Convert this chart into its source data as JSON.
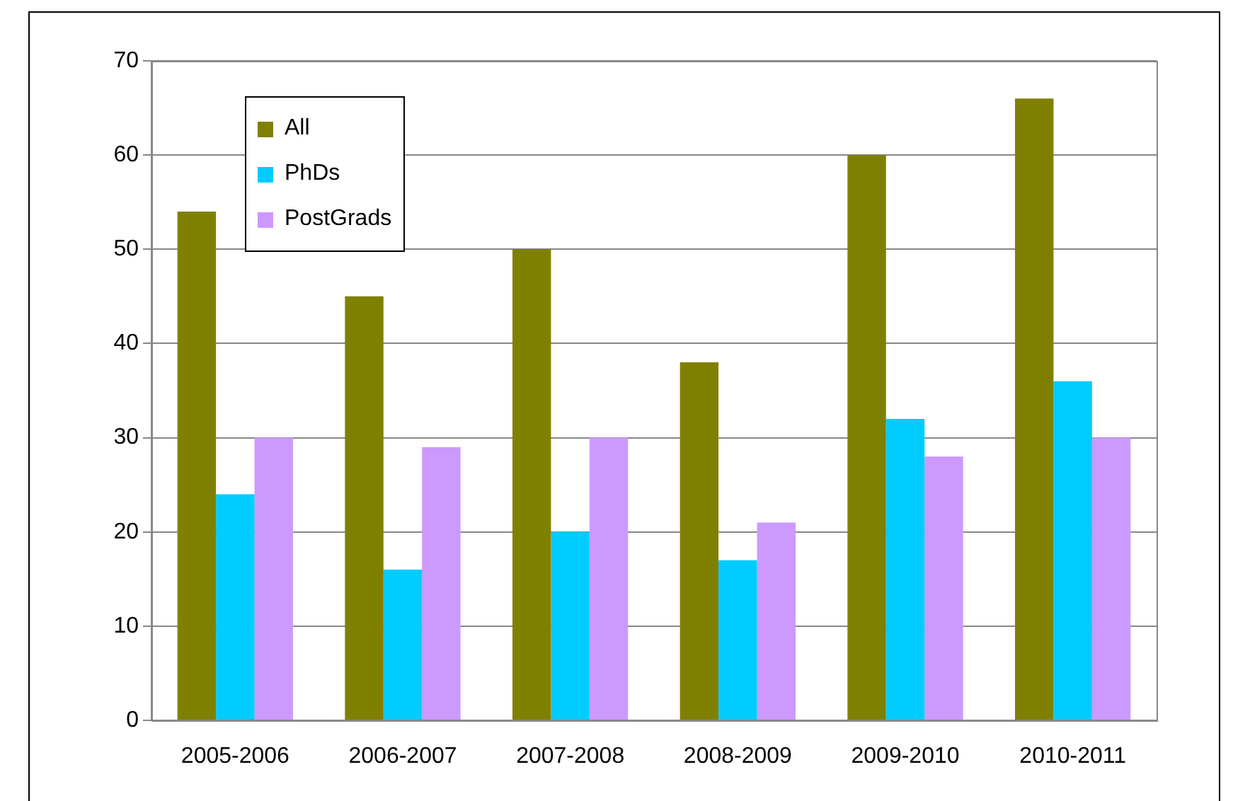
{
  "chart_data": {
    "type": "bar",
    "categories": [
      "2005-2006",
      "2006-2007",
      "2007-2008",
      "2008-2009",
      "2009-2010",
      "2010-2011"
    ],
    "series": [
      {
        "name": "All",
        "color": "#808000",
        "values": [
          54,
          45,
          50,
          38,
          60,
          66
        ]
      },
      {
        "name": "PhDs",
        "color": "#00ccff",
        "values": [
          24,
          16,
          20,
          17,
          32,
          36
        ]
      },
      {
        "name": "PostGrads",
        "color": "#cc99ff",
        "values": [
          30,
          29,
          30,
          21,
          28,
          30
        ]
      }
    ],
    "ylim": [
      0,
      70
    ],
    "yticks": [
      0,
      10,
      20,
      30,
      40,
      50,
      60,
      70
    ],
    "grid": "y",
    "legend": "top left"
  }
}
